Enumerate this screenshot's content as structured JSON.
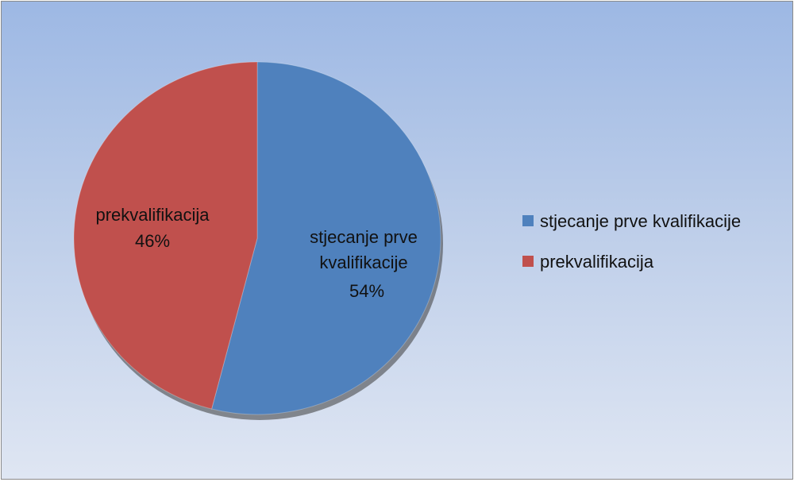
{
  "chart_data": {
    "type": "pie",
    "title": "",
    "categories": [
      "stjecanje prve kvalifikacije",
      "prekvalifikacija"
    ],
    "values": [
      54,
      46
    ],
    "units": "%",
    "colors": [
      "#4f81bd",
      "#c0504d"
    ],
    "data_labels": [
      {
        "lines": [
          "stjecanje prve",
          "kvalifikacije"
        ],
        "percent": "54%"
      },
      {
        "lines": [
          "prekvalifikacija"
        ],
        "percent": "46%"
      }
    ],
    "legend": {
      "placement": "right",
      "entries": [
        "stjecanje prve kvalifikacije",
        "prekvalifikacija"
      ]
    }
  }
}
